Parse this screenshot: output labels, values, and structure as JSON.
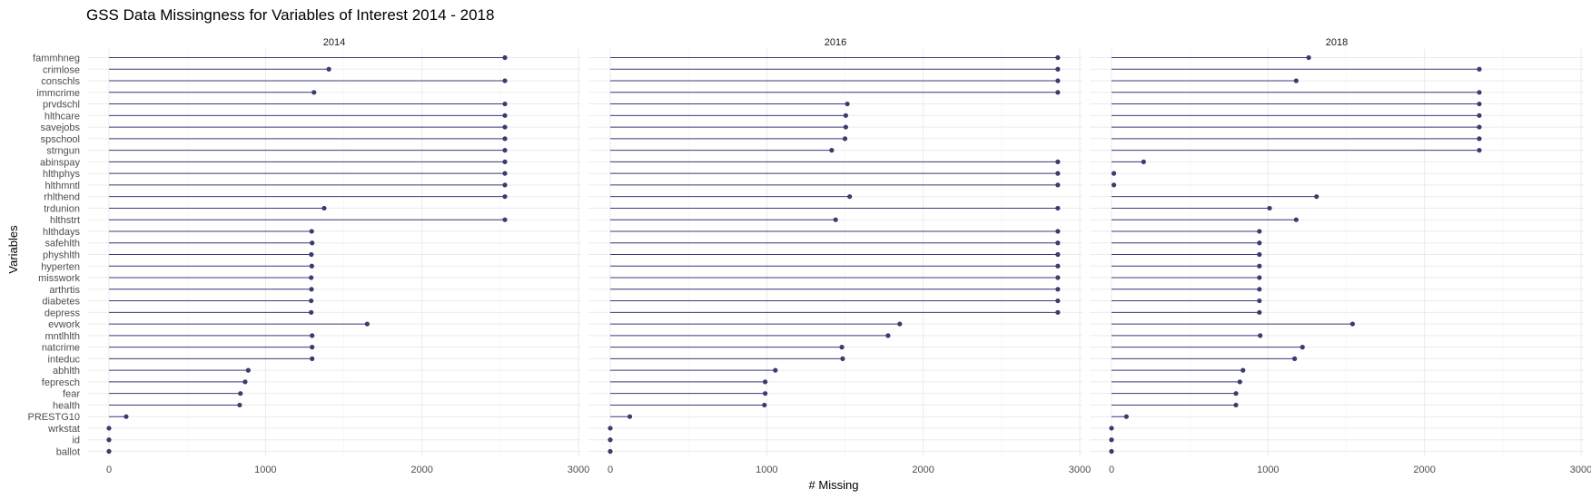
{
  "chart_data": {
    "type": "lollipop",
    "title": "GSS Data Missingness for Variables of Interest 2014 - 2018",
    "xlabel": "# Missing",
    "ylabel": "Variables",
    "xlim": [
      0,
      3000
    ],
    "xticks": [
      0,
      1000,
      2000,
      3000
    ],
    "xtick_labels": [
      "0",
      "1000",
      "2000",
      "3000"
    ],
    "grid": true,
    "colors": {
      "line": "#3b3b7a",
      "point": "#3b3b6e"
    },
    "categories": [
      "fammhneg",
      "crimlose",
      "conschls",
      "immcrime",
      "prvdschl",
      "hlthcare",
      "savejobs",
      "spschool",
      "strngun",
      "abinspay",
      "hlthphys",
      "hlthmntl",
      "rhlthend",
      "trdunion",
      "hlthstrt",
      "hlthdays",
      "safehlth",
      "physhlth",
      "hyperten",
      "misswork",
      "arthrtis",
      "diabetes",
      "depress",
      "evwork",
      "mntlhlth",
      "natcrime",
      "inteduc",
      "abhlth",
      "fepresch",
      "fear",
      "health",
      "PRESTG10",
      "wrkstat",
      "id",
      "ballot"
    ],
    "facets": [
      {
        "label": "2014",
        "values": [
          2530,
          1405,
          2530,
          1310,
          2530,
          2530,
          2530,
          2530,
          2530,
          2530,
          2530,
          2530,
          2530,
          1375,
          2530,
          1295,
          1298,
          1293,
          1296,
          1292,
          1294,
          1292,
          1292,
          1650,
          1298,
          1298,
          1298,
          890,
          870,
          840,
          835,
          110,
          0,
          0,
          0
        ]
      },
      {
        "label": "2016",
        "values": [
          2860,
          2860,
          2860,
          2860,
          1515,
          1505,
          1505,
          1500,
          1415,
          2860,
          2860,
          2860,
          1530,
          2860,
          1440,
          2860,
          2860,
          2860,
          2860,
          2860,
          2860,
          2860,
          2860,
          1850,
          1775,
          1480,
          1485,
          1055,
          990,
          990,
          985,
          125,
          0,
          0,
          0
        ]
      },
      {
        "label": "2018",
        "values": [
          1260,
          2350,
          1180,
          2350,
          2350,
          2350,
          2350,
          2350,
          2350,
          205,
          15,
          15,
          1310,
          1010,
          1180,
          945,
          945,
          945,
          945,
          945,
          945,
          945,
          945,
          1540,
          950,
          1220,
          1170,
          840,
          820,
          795,
          795,
          95,
          0,
          0,
          0
        ]
      }
    ]
  }
}
